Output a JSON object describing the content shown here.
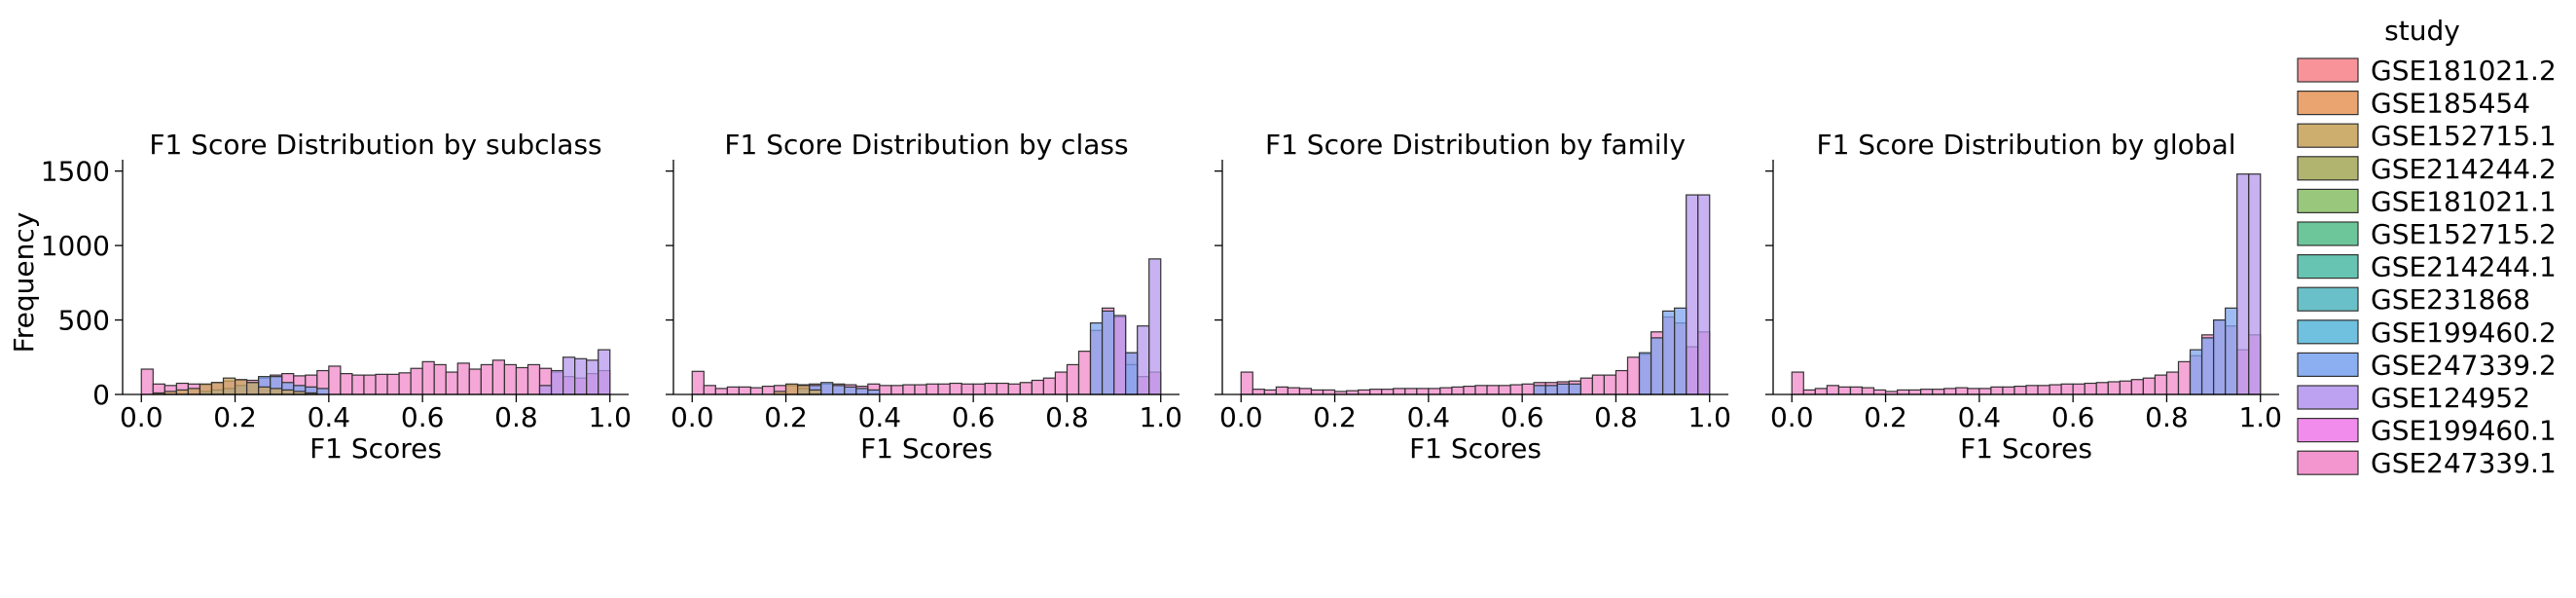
{
  "chart_data": {
    "type": "bar",
    "subtype": "overlaid histogram facets",
    "x_bins": [
      0.0,
      0.025,
      0.05,
      0.075,
      0.1,
      0.125,
      0.15,
      0.175,
      0.2,
      0.225,
      0.25,
      0.275,
      0.3,
      0.325,
      0.35,
      0.375,
      0.4,
      0.425,
      0.45,
      0.475,
      0.5,
      0.525,
      0.55,
      0.575,
      0.6,
      0.625,
      0.65,
      0.675,
      0.7,
      0.725,
      0.75,
      0.775,
      0.8,
      0.825,
      0.85,
      0.875,
      0.9,
      0.925,
      0.95,
      0.975
    ],
    "xlabel": "F1 Scores",
    "ylabel": "Frequency",
    "xlim": [
      -0.04,
      1.04
    ],
    "ylim": [
      0,
      1550
    ],
    "xticks": [
      "0.0",
      "0.2",
      "0.4",
      "0.6",
      "0.8",
      "1.0"
    ],
    "yticks": [
      "0",
      "500",
      "1000",
      "1500"
    ],
    "grid": false,
    "legend": {
      "title": "study",
      "placement": "right",
      "entries": [
        {
          "label": "GSE181021.2",
          "color": "#f7878f"
        },
        {
          "label": "GSE185454",
          "color": "#e89a61"
        },
        {
          "label": "GSE152715.1",
          "color": "#c9a55e"
        },
        {
          "label": "GSE214244.2",
          "color": "#a8ac5e"
        },
        {
          "label": "GSE181021.1",
          "color": "#8ec26e"
        },
        {
          "label": "GSE152715.2",
          "color": "#5cc08f"
        },
        {
          "label": "GSE214244.1",
          "color": "#56bdaa"
        },
        {
          "label": "GSE231868",
          "color": "#5ab9c2"
        },
        {
          "label": "GSE199460.2",
          "color": "#5fbadb"
        },
        {
          "label": "GSE247339.2",
          "color": "#7ea6ef"
        },
        {
          "label": "GSE124952",
          "color": "#b598ee"
        },
        {
          "label": "GSE199460.1",
          "color": "#ef7fea"
        },
        {
          "label": "GSE247339.1",
          "color": "#f28ac9"
        }
      ]
    },
    "panels": [
      {
        "title": "F1 Score Distribution by subclass",
        "series": [
          {
            "name": "GSE247339.1",
            "values": [
              170,
              70,
              60,
              75,
              70,
              65,
              80,
              90,
              95,
              95,
              110,
              130,
              140,
              125,
              130,
              160,
              190,
              140,
              130,
              130,
              135,
              135,
              145,
              175,
              220,
              200,
              150,
              210,
              170,
              200,
              230,
              200,
              180,
              200,
              175,
              150,
              120,
              110,
              140,
              160
            ]
          },
          {
            "name": "GSE124952",
            "values": [
              0,
              0,
              0,
              0,
              0,
              0,
              0,
              0,
              0,
              0,
              0,
              0,
              0,
              0,
              0,
              0,
              0,
              0,
              0,
              0,
              0,
              0,
              0,
              0,
              0,
              0,
              0,
              0,
              0,
              0,
              0,
              0,
              0,
              0,
              60,
              160,
              250,
              240,
              230,
              300
            ]
          },
          {
            "name": "GSE247339.2",
            "values": [
              0,
              0,
              0,
              0,
              0,
              20,
              30,
              40,
              60,
              80,
              120,
              120,
              80,
              60,
              50,
              40,
              0,
              0,
              0,
              0,
              0,
              0,
              0,
              0,
              0,
              0,
              0,
              0,
              0,
              0,
              0,
              0,
              0,
              0,
              0,
              0,
              0,
              0,
              0,
              0
            ]
          },
          {
            "name": "GSE152715.1",
            "values": [
              0,
              10,
              20,
              30,
              40,
              70,
              80,
              110,
              100,
              80,
              50,
              40,
              30,
              20,
              10,
              0,
              0,
              0,
              0,
              0,
              0,
              0,
              0,
              0,
              0,
              0,
              0,
              0,
              0,
              0,
              0,
              0,
              0,
              0,
              0,
              0,
              0,
              0,
              0,
              0
            ]
          }
        ]
      },
      {
        "title": "F1 Score Distribution by class",
        "series": [
          {
            "name": "GSE247339.1",
            "values": [
              155,
              60,
              40,
              50,
              50,
              45,
              55,
              60,
              60,
              65,
              70,
              70,
              70,
              65,
              55,
              70,
              60,
              60,
              65,
              65,
              70,
              70,
              75,
              70,
              70,
              75,
              75,
              70,
              80,
              95,
              110,
              150,
              200,
              290,
              430,
              580,
              520,
              280,
              120,
              150
            ]
          },
          {
            "name": "GSE124952",
            "values": [
              0,
              0,
              0,
              0,
              0,
              0,
              0,
              0,
              0,
              0,
              0,
              0,
              0,
              0,
              0,
              0,
              0,
              0,
              0,
              0,
              0,
              0,
              0,
              0,
              0,
              0,
              0,
              0,
              0,
              0,
              0,
              0,
              0,
              0,
              0,
              0,
              530,
              200,
              460,
              910
            ]
          },
          {
            "name": "GSE247339.2",
            "values": [
              0,
              0,
              0,
              0,
              0,
              0,
              0,
              0,
              0,
              40,
              60,
              80,
              60,
              50,
              40,
              30,
              0,
              0,
              0,
              0,
              0,
              0,
              0,
              0,
              0,
              0,
              0,
              0,
              0,
              0,
              0,
              0,
              0,
              0,
              480,
              560,
              0,
              280,
              0,
              0
            ]
          },
          {
            "name": "GSE152715.1",
            "values": [
              0,
              0,
              0,
              0,
              0,
              0,
              0,
              20,
              70,
              60,
              30,
              0,
              0,
              0,
              0,
              0,
              0,
              0,
              0,
              0,
              0,
              0,
              0,
              0,
              0,
              0,
              0,
              0,
              0,
              0,
              0,
              0,
              0,
              0,
              0,
              0,
              0,
              0,
              0,
              0
            ]
          }
        ]
      },
      {
        "title": "F1 Score Distribution by family",
        "series": [
          {
            "name": "GSE247339.1",
            "values": [
              150,
              35,
              30,
              50,
              45,
              40,
              30,
              30,
              20,
              25,
              30,
              35,
              35,
              40,
              40,
              40,
              40,
              45,
              50,
              55,
              60,
              60,
              60,
              65,
              70,
              80,
              80,
              85,
              90,
              110,
              130,
              130,
              160,
              250,
              270,
              420,
              520,
              480,
              320,
              420
            ]
          },
          {
            "name": "GSE124952",
            "values": [
              0,
              0,
              0,
              0,
              0,
              0,
              0,
              0,
              0,
              0,
              0,
              0,
              0,
              0,
              0,
              0,
              0,
              0,
              0,
              0,
              0,
              0,
              0,
              0,
              0,
              0,
              0,
              0,
              0,
              0,
              0,
              0,
              0,
              0,
              0,
              0,
              0,
              0,
              1340,
              1340
            ]
          },
          {
            "name": "GSE247339.2",
            "values": [
              0,
              0,
              0,
              0,
              0,
              0,
              0,
              0,
              0,
              0,
              0,
              0,
              0,
              0,
              0,
              0,
              0,
              0,
              0,
              0,
              0,
              0,
              0,
              0,
              0,
              60,
              60,
              70,
              70,
              0,
              0,
              0,
              0,
              0,
              280,
              380,
              560,
              580,
              0,
              0
            ]
          }
        ]
      },
      {
        "title": "F1 Score Distribution by global",
        "series": [
          {
            "name": "GSE247339.1",
            "values": [
              150,
              30,
              40,
              60,
              50,
              50,
              45,
              30,
              20,
              30,
              30,
              35,
              35,
              40,
              45,
              40,
              40,
              50,
              50,
              55,
              60,
              60,
              65,
              70,
              70,
              75,
              80,
              85,
              90,
              100,
              110,
              130,
              150,
              220,
              260,
              400,
              500,
              460,
              300,
              400
            ]
          },
          {
            "name": "GSE124952",
            "values": [
              0,
              0,
              0,
              0,
              0,
              0,
              0,
              0,
              0,
              0,
              0,
              0,
              0,
              0,
              0,
              0,
              0,
              0,
              0,
              0,
              0,
              0,
              0,
              0,
              0,
              0,
              0,
              0,
              0,
              0,
              0,
              0,
              0,
              0,
              0,
              0,
              0,
              0,
              1480,
              1480
            ]
          },
          {
            "name": "GSE247339.2",
            "values": [
              0,
              0,
              0,
              0,
              0,
              0,
              0,
              0,
              0,
              0,
              0,
              0,
              0,
              0,
              0,
              0,
              0,
              0,
              0,
              0,
              0,
              0,
              0,
              0,
              0,
              0,
              0,
              0,
              0,
              0,
              0,
              0,
              0,
              0,
              300,
              380,
              500,
              580,
              0,
              0
            ]
          }
        ]
      }
    ]
  }
}
